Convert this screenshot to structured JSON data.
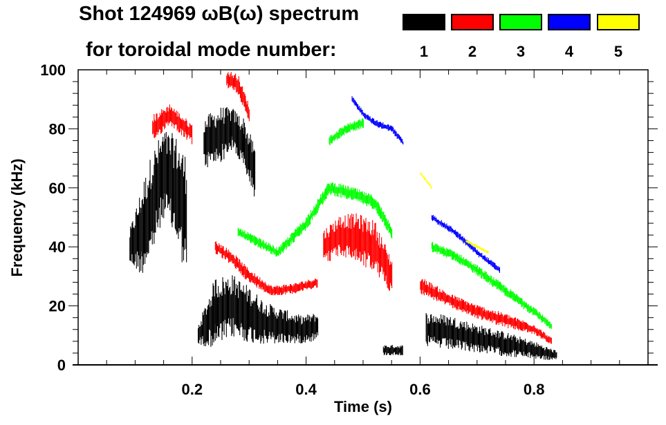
{
  "title_line1": "Shot 124969 ωB(ω) spectrum",
  "title_line2": "for toroidal mode number:",
  "legend": [
    {
      "label": "1",
      "color": "#000000"
    },
    {
      "label": "2",
      "color": "#ff0000"
    },
    {
      "label": "3",
      "color": "#00ff00"
    },
    {
      "label": "4",
      "color": "#0000ff"
    },
    {
      "label": "5",
      "color": "#ffff00"
    }
  ],
  "chart_data": {
    "type": "heatmap",
    "title": "Shot 124969 ωB(ω) spectrum for toroidal mode number",
    "xlabel": "Time (s)",
    "ylabel": "Frequency (kHz)",
    "xlim": [
      0,
      1.0
    ],
    "ylim": [
      0,
      100
    ],
    "xticks": [
      0.2,
      0.4,
      0.6,
      0.8
    ],
    "xtick_labels": [
      "0.2",
      "0.4",
      "0.6",
      "0.8"
    ],
    "yticks": [
      0,
      20,
      40,
      60,
      80,
      100
    ],
    "ytick_labels": [
      "0",
      "20",
      "40",
      "60",
      "80",
      "100"
    ],
    "grid": false,
    "legend_position": "top",
    "note": "ridges: [time_s, center_freq_kHz, spread_kHz]",
    "modes": [
      {
        "n": 1,
        "color": "#000000",
        "ridges": [
          [
            [
              0.09,
              40,
              10
            ],
            [
              0.11,
              45,
              25
            ],
            [
              0.13,
              55,
              30
            ],
            [
              0.15,
              65,
              25
            ],
            [
              0.17,
              60,
              30
            ],
            [
              0.19,
              50,
              35
            ]
          ],
          [
            [
              0.22,
              75,
              15
            ],
            [
              0.25,
              78,
              16
            ],
            [
              0.27,
              80,
              12
            ],
            [
              0.29,
              75,
              15
            ],
            [
              0.31,
              65,
              15
            ]
          ],
          [
            [
              0.21,
              10,
              6
            ],
            [
              0.24,
              18,
              20
            ],
            [
              0.27,
              20,
              18
            ],
            [
              0.3,
              17,
              16
            ],
            [
              0.33,
              14,
              12
            ],
            [
              0.36,
              13,
              10
            ],
            [
              0.39,
              12,
              8
            ],
            [
              0.42,
              13,
              8
            ]
          ],
          [
            [
              0.535,
              5,
              3
            ],
            [
              0.57,
              5,
              3
            ]
          ],
          [
            [
              0.61,
              12,
              10
            ],
            [
              0.65,
              11,
              10
            ],
            [
              0.7,
              9,
              8
            ],
            [
              0.75,
              7,
              7
            ],
            [
              0.8,
              5,
              5
            ],
            [
              0.84,
              3,
              3
            ]
          ]
        ]
      },
      {
        "n": 2,
        "color": "#ff0000",
        "ridges": [
          [
            [
              0.13,
              80,
              8
            ],
            [
              0.16,
              85,
              6
            ],
            [
              0.2,
              78,
              6
            ]
          ],
          [
            [
              0.26,
              97,
              5
            ],
            [
              0.28,
              95,
              6
            ],
            [
              0.3,
              85,
              5
            ]
          ],
          [
            [
              0.24,
              40,
              4
            ],
            [
              0.27,
              36,
              4
            ],
            [
              0.3,
              30,
              4
            ],
            [
              0.34,
              25,
              3
            ],
            [
              0.38,
              26,
              3
            ],
            [
              0.42,
              28,
              3
            ]
          ],
          [
            [
              0.43,
              40,
              10
            ],
            [
              0.46,
              44,
              12
            ],
            [
              0.49,
              43,
              14
            ],
            [
              0.52,
              40,
              15
            ],
            [
              0.55,
              30,
              10
            ]
          ],
          [
            [
              0.6,
              27,
              5
            ],
            [
              0.65,
              22,
              4
            ],
            [
              0.7,
              18,
              4
            ],
            [
              0.75,
              15,
              4
            ],
            [
              0.8,
              12,
              3
            ],
            [
              0.83,
              8,
              2
            ]
          ]
        ]
      },
      {
        "n": 3,
        "color": "#00ff00",
        "ridges": [
          [
            [
              0.28,
              45,
              3
            ],
            [
              0.35,
              38,
              3
            ],
            [
              0.4,
              48,
              4
            ],
            [
              0.44,
              60,
              4
            ],
            [
              0.48,
              58,
              4
            ],
            [
              0.52,
              55,
              4
            ],
            [
              0.55,
              45,
              4
            ]
          ],
          [
            [
              0.44,
              76,
              3
            ],
            [
              0.47,
              80,
              3
            ],
            [
              0.5,
              82,
              3
            ]
          ],
          [
            [
              0.62,
              40,
              3
            ],
            [
              0.66,
              37,
              3
            ],
            [
              0.7,
              32,
              3
            ],
            [
              0.75,
              25,
              3
            ],
            [
              0.8,
              18,
              3
            ],
            [
              0.83,
              13,
              2
            ]
          ]
        ]
      },
      {
        "n": 4,
        "color": "#0000ff",
        "ridges": [
          [
            [
              0.48,
              90,
              2
            ],
            [
              0.5,
              85,
              2
            ],
            [
              0.52,
              82,
              2
            ],
            [
              0.55,
              80,
              2
            ],
            [
              0.57,
              75,
              2
            ]
          ],
          [
            [
              0.62,
              50,
              2
            ],
            [
              0.66,
              45,
              2
            ],
            [
              0.7,
              38,
              2
            ],
            [
              0.74,
              32,
              2
            ]
          ]
        ]
      },
      {
        "n": 5,
        "color": "#ffff00",
        "ridges": [
          [
            [
              0.6,
              65,
              1
            ],
            [
              0.62,
              60,
              1
            ]
          ],
          [
            [
              0.68,
              42,
              1
            ],
            [
              0.72,
              38,
              1
            ]
          ]
        ]
      }
    ]
  }
}
